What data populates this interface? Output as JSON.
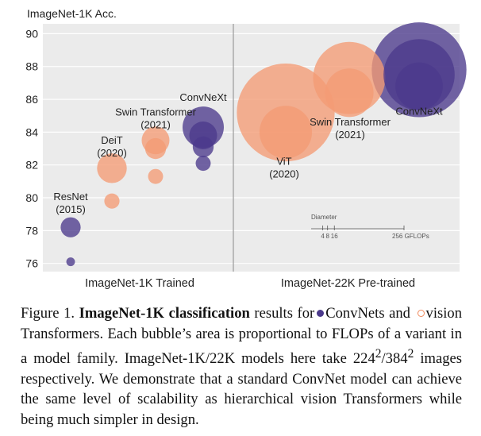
{
  "chart_data": {
    "type": "scatter",
    "ylabel": "ImageNet-1K Acc.",
    "ylim": [
      75.5,
      90.6
    ],
    "yticks": [
      "76",
      "78",
      "80",
      "82",
      "84",
      "86",
      "88",
      "90"
    ],
    "panels": [
      {
        "name": "ImageNet-1K Trained"
      },
      {
        "name": "ImageNet-22K Pre-trained"
      }
    ],
    "series": [
      {
        "name": "ConvNets",
        "color": "#4b3a8c",
        "points": [
          {
            "panel": 0,
            "model": "ResNet",
            "y": 78.2,
            "gflops": 8
          },
          {
            "panel": 0,
            "model": "ResNet",
            "y": 76.1,
            "gflops": 1.5
          },
          {
            "panel": 0,
            "model": "ConvNeXt",
            "y": 82.1,
            "gflops": 4.5
          },
          {
            "panel": 0,
            "model": "ConvNeXt",
            "y": 83.1,
            "gflops": 8.7
          },
          {
            "panel": 0,
            "model": "ConvNeXt",
            "y": 83.8,
            "gflops": 15.4
          },
          {
            "panel": 0,
            "model": "ConvNeXt",
            "y": 84.3,
            "gflops": 34
          },
          {
            "panel": 1,
            "model": "ConvNeXt",
            "y": 86.8,
            "gflops": 45
          },
          {
            "panel": 1,
            "model": "ConvNeXt",
            "y": 87.5,
            "gflops": 101
          },
          {
            "panel": 1,
            "model": "ConvNeXt",
            "y": 87.8,
            "gflops": 179
          }
        ]
      },
      {
        "name": "vision Transformers",
        "color": "#f39b75",
        "points": [
          {
            "panel": 0,
            "model": "DeiT",
            "y": 79.8,
            "gflops": 4.6
          },
          {
            "panel": 0,
            "model": "DeiT",
            "y": 81.8,
            "gflops": 17.6
          },
          {
            "panel": 0,
            "model": "Swin Transformer",
            "y": 81.3,
            "gflops": 4.5
          },
          {
            "panel": 0,
            "model": "Swin Transformer",
            "y": 83.0,
            "gflops": 8.7
          },
          {
            "panel": 0,
            "model": "Swin Transformer",
            "y": 83.5,
            "gflops": 15.4
          },
          {
            "panel": 1,
            "model": "ViT",
            "y": 84.0,
            "gflops": 55
          },
          {
            "panel": 1,
            "model": "ViT",
            "y": 85.2,
            "gflops": 191
          },
          {
            "panel": 1,
            "model": "Swin Transformer",
            "y": 86.4,
            "gflops": 47
          },
          {
            "panel": 1,
            "model": "Swin Transformer",
            "y": 87.3,
            "gflops": 104
          }
        ]
      }
    ],
    "annotations": [
      {
        "panel": 0,
        "lines": [
          "ResNet",
          "(2015)"
        ],
        "y": 79.85
      },
      {
        "panel": 0,
        "lines": [
          "DeiT",
          "(2020)"
        ],
        "y": 83.3
      },
      {
        "panel": 0,
        "lines": [
          "Swin Transformer",
          "(2021)"
        ],
        "y": 85.0
      },
      {
        "panel": 0,
        "lines": [
          "ConvNeXt"
        ],
        "y": 85.9
      },
      {
        "panel": 1,
        "lines": [
          "ViT",
          "(2020)"
        ],
        "y": 82.0
      },
      {
        "panel": 1,
        "lines": [
          "Swin Transformer",
          "(2021)"
        ],
        "y": 84.4
      },
      {
        "panel": 1,
        "lines": [
          "ConvNeXt"
        ],
        "y": 85.05
      }
    ],
    "size_legend": {
      "title": "Diameter",
      "ticks": [
        "4",
        "8",
        "16",
        "256 GFLOPs"
      ],
      "values": [
        4,
        8,
        16,
        256
      ]
    },
    "grid": true,
    "background": "#ebebeb"
  },
  "caption": {
    "figure": "Figure 1.",
    "bold": "ImageNet-1K classification",
    "t1": "results for",
    "t2": "ConvNets and",
    "t3": "vision Transformers. Each bubble’s area is proportional to FLOPs of a variant in a model family. ImageNet-1K/22K models here take 224",
    "sup1": "2",
    "t4": "/384",
    "sup2": "2",
    "t5": "images respectively. We demonstrate that a standard ConvNet model can achieve the same level of scalability as hierarchical vision Transformers while being much simpler in design."
  }
}
